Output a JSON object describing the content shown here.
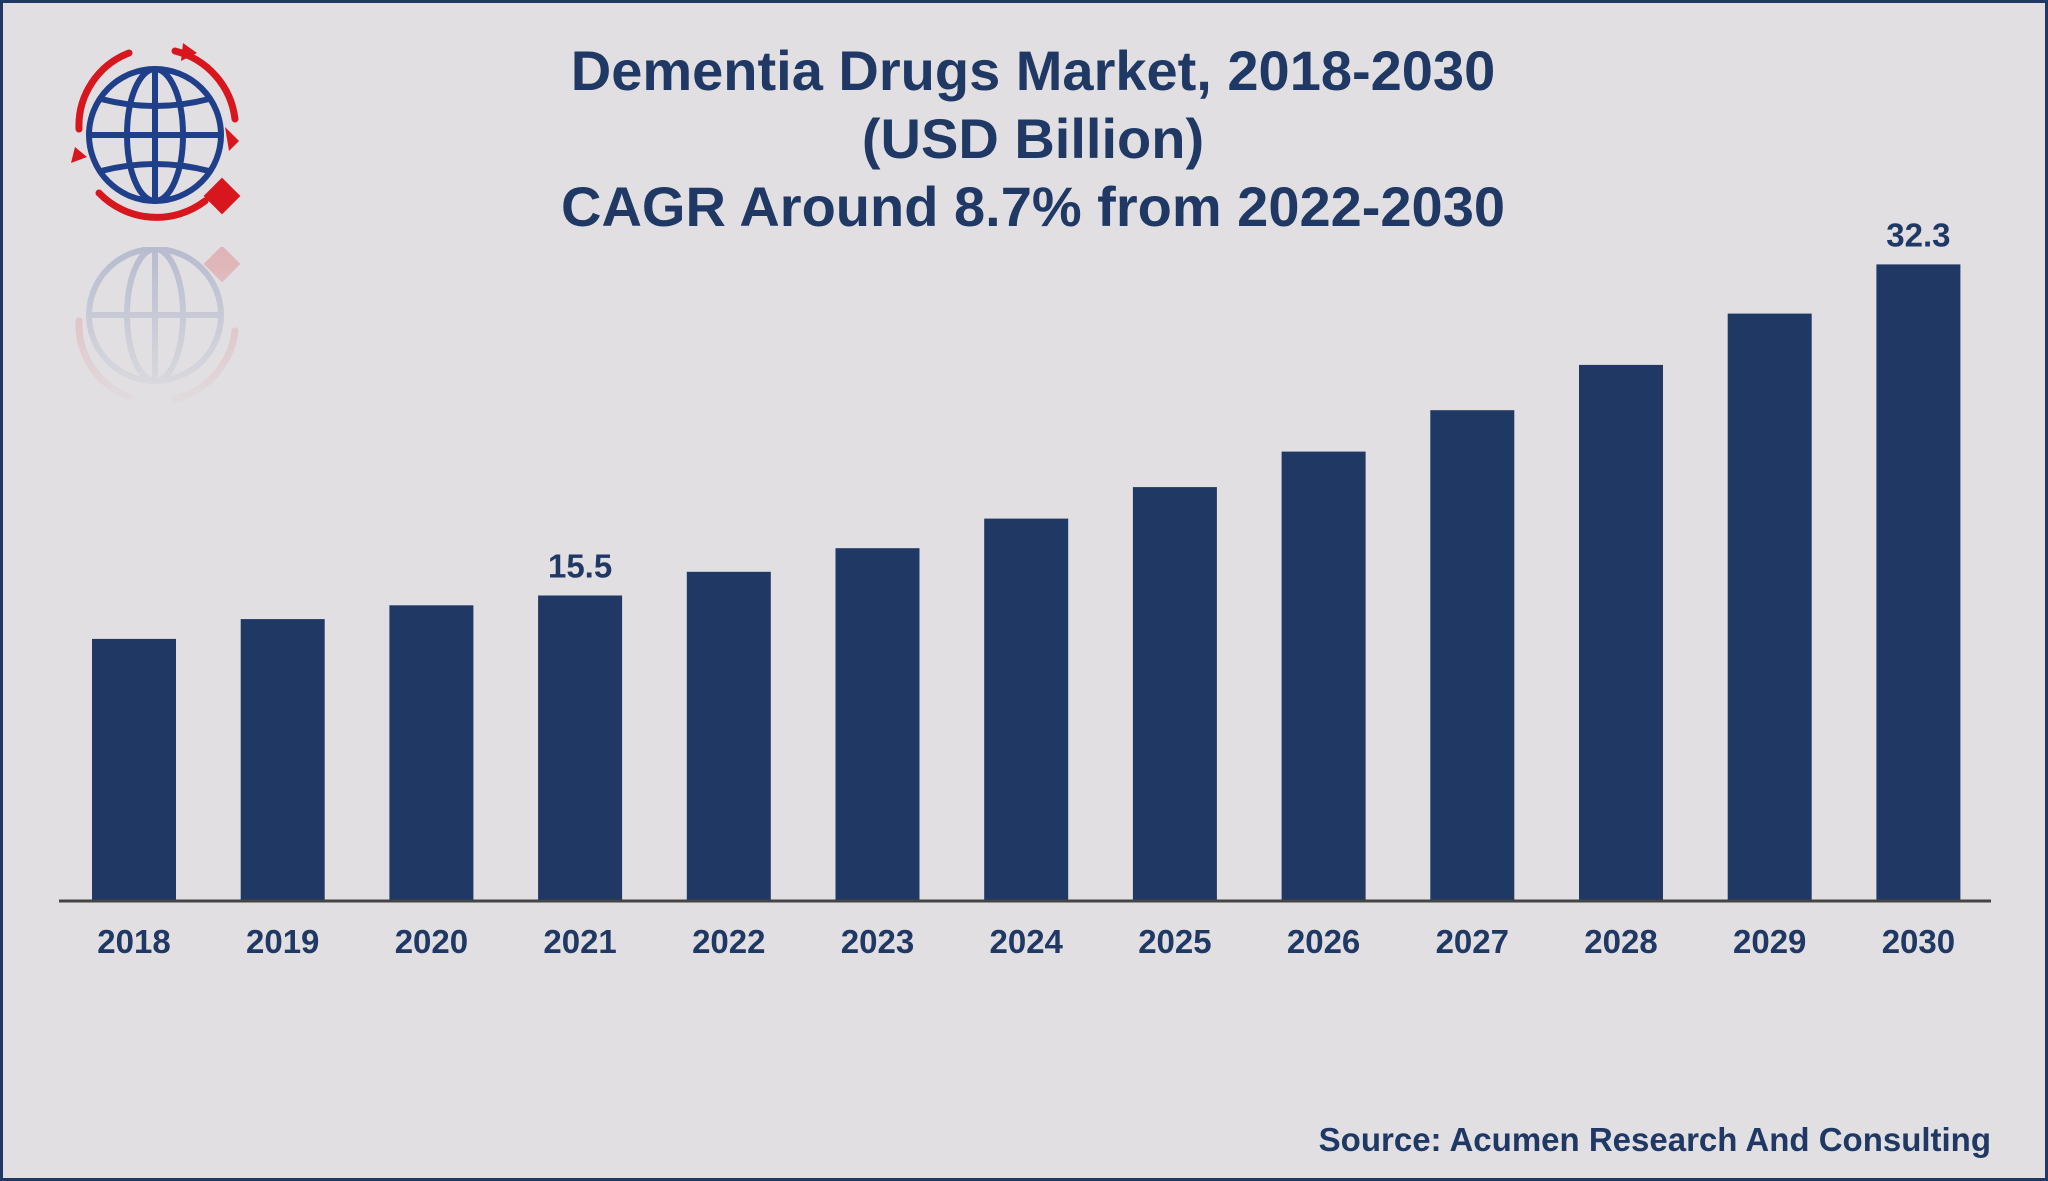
{
  "title": {
    "line1": "Dementia Drugs Market, 2018-2030",
    "line2": "(USD Billion)",
    "line3": "CAGR Around 8.7% from 2022-2030"
  },
  "source": "Source: Acumen Research And Consulting",
  "logo_icon": "globe-logo-icon",
  "colors": {
    "bar": "#203864",
    "text": "#1f3864",
    "background": "#e1dfe2",
    "accent": "#d7161e"
  },
  "chart_data": {
    "type": "bar",
    "categories": [
      "2018",
      "2019",
      "2020",
      "2021",
      "2022",
      "2023",
      "2024",
      "2025",
      "2026",
      "2027",
      "2028",
      "2029",
      "2030"
    ],
    "values": [
      13.3,
      14.3,
      15.0,
      15.5,
      16.7,
      17.9,
      19.4,
      21.0,
      22.8,
      24.9,
      27.2,
      29.8,
      32.3
    ],
    "data_labels": [
      {
        "category": "2021",
        "text": "15.5"
      },
      {
        "category": "2030",
        "text": "32.3"
      }
    ],
    "xlabel": "",
    "ylabel": "",
    "ylim": [
      0,
      34.5
    ],
    "grid": false,
    "legend": "none"
  }
}
